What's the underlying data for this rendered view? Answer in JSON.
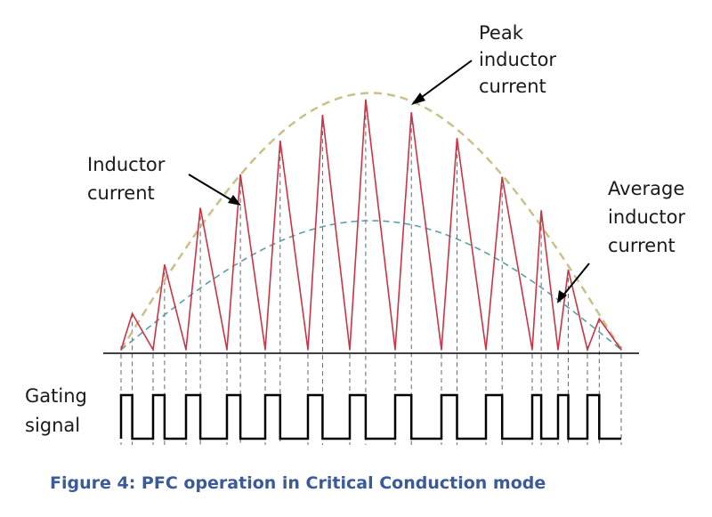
{
  "labels": {
    "peak_line1": "Peak",
    "peak_line2": "inductor",
    "peak_line3": "current",
    "inductor_line1": "Inductor",
    "inductor_line2": "current",
    "average_line1": "Average",
    "average_line2": "inductor",
    "average_line3": "current",
    "gating_line1": "Gating",
    "gating_line2": "signal"
  },
  "caption": "Figure 4: PFC operation in Critical Conduction mode",
  "colors": {
    "inductor_current": "#cc3344",
    "peak_envelope": "#c9c08a",
    "average_envelope": "#5a9ea8",
    "axis": "#000000",
    "gating": "#000000",
    "guides": "#555555",
    "caption": "#3a5a9a"
  },
  "waveform": {
    "cycles": 13,
    "valley_count": 14,
    "peak_relative_heights": [
      0.14,
      0.33,
      0.55,
      0.68,
      0.81,
      0.91,
      0.97,
      0.92,
      0.82,
      0.67,
      0.54,
      0.31,
      0.12
    ]
  }
}
